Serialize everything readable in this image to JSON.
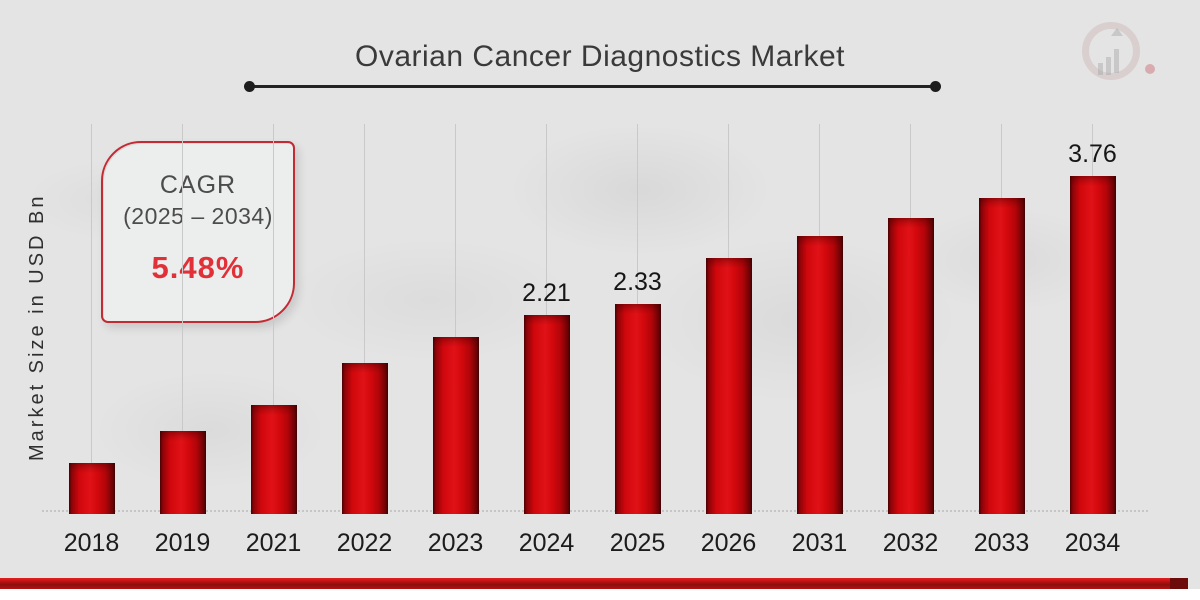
{
  "header": {
    "title": "Ovarian Cancer Diagnostics Market"
  },
  "y_axis": {
    "label": "Market Size in USD Bn"
  },
  "cagr_box": {
    "label": "CAGR",
    "range": "(2025 – 2034)",
    "value": "5.48%"
  },
  "branding": {
    "logo_name": "market-research-future-watermark-logo"
  },
  "colors": {
    "background": "#e4e4e4",
    "bar_red": "#d10a0f",
    "bar_edge_dark": "#5e0305",
    "accent_border_red": "#c32a33",
    "cagr_value_red": "#e23038",
    "stripe_red": "#c41212",
    "title_text": "#3a3a3a",
    "tick_text": "#1c1c1c",
    "gridline": "#c9c9c9"
  },
  "chart_data": {
    "type": "bar",
    "title": "Ovarian Cancer Diagnostics Market",
    "xlabel": "",
    "ylabel": "Market Size in USD Bn",
    "categories": [
      "2018",
      "2019",
      "2021",
      "2022",
      "2023",
      "2024",
      "2025",
      "2026",
      "2031",
      "2032",
      "2033",
      "2034"
    ],
    "values": [
      0.57,
      0.92,
      1.21,
      1.68,
      1.97,
      2.21,
      2.33,
      2.84,
      3.09,
      3.29,
      3.51,
      3.76
    ],
    "data_labels": [
      "",
      "",
      "",
      "",
      "",
      "2.21",
      "2.33",
      "",
      "",
      "",
      "",
      "3.76"
    ],
    "ylim": [
      0,
      4.2
    ],
    "grid": "faint vertical gridline per category",
    "legend": "none",
    "bar_color": "#d10a0f"
  }
}
